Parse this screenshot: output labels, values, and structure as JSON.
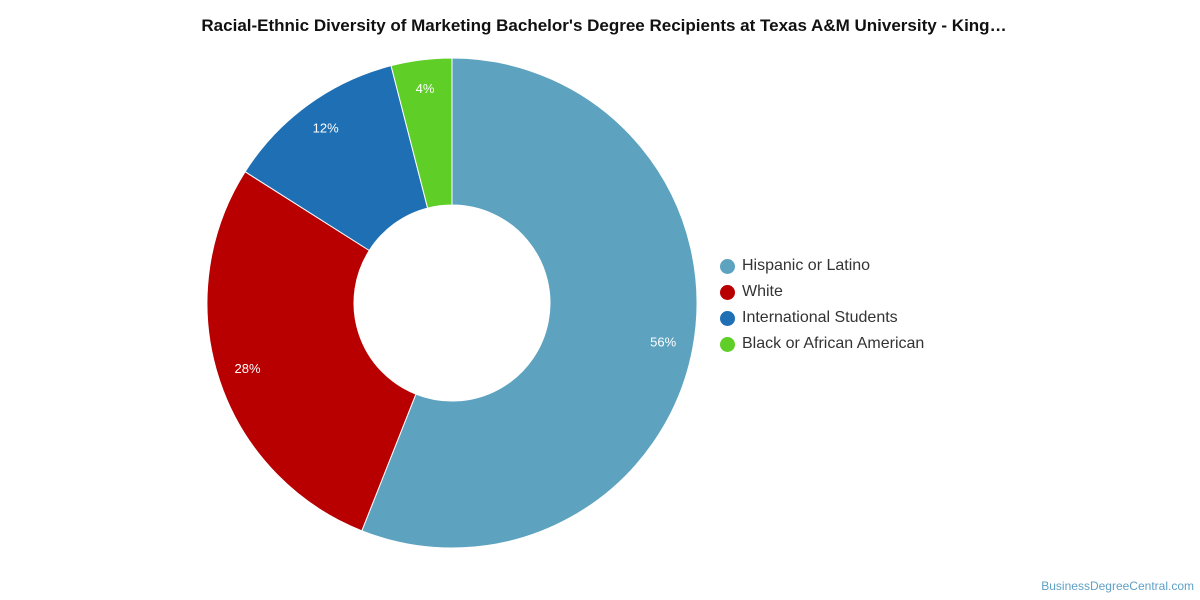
{
  "chart_data": {
    "type": "pie",
    "title": "Racial-Ethnic Diversity of Marketing Bachelor's Degree Recipients at Texas A&M University - King…",
    "donut": true,
    "legend_position": "right",
    "slices": [
      {
        "label": "Hispanic or Latino",
        "value": 56,
        "display": "56%",
        "color": "#5da2bf"
      },
      {
        "label": "White",
        "value": 28,
        "display": "28%",
        "color": "#b80000"
      },
      {
        "label": "International Students",
        "value": 12,
        "display": "12%",
        "color": "#1f6fb5"
      },
      {
        "label": "Black or African American",
        "value": 4,
        "display": "4%",
        "color": "#5fce27"
      }
    ]
  },
  "watermark": "BusinessDegreeCentral.com"
}
